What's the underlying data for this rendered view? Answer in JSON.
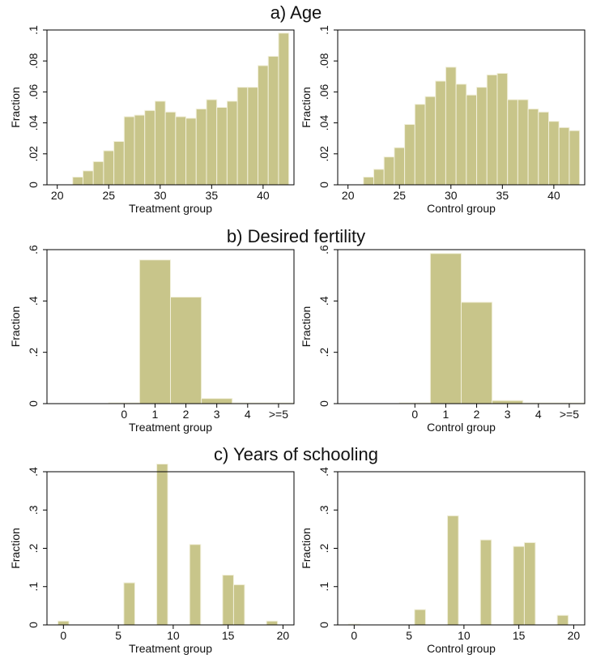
{
  "sections": [
    {
      "title": "a) Age"
    },
    {
      "title": "b) Desired fertility"
    },
    {
      "title": "c) Years of schooling"
    }
  ],
  "colors": {
    "bar_fill": "#c8c58a",
    "bar_stroke": "#f2f0dc",
    "axis": "#000000"
  },
  "chart_data": [
    {
      "type": "bar",
      "panel": "age-treatment",
      "xlabel": "Treatment group",
      "ylabel": "Fraction",
      "xlim": [
        19,
        43
      ],
      "ylim": [
        0,
        0.1
      ],
      "xticks": [
        {
          "v": 20,
          "label": "20"
        },
        {
          "v": 25,
          "label": "25"
        },
        {
          "v": 30,
          "label": "30"
        },
        {
          "v": 35,
          "label": "35"
        },
        {
          "v": 40,
          "label": "40"
        }
      ],
      "yticks": [
        {
          "v": 0,
          "label": "0"
        },
        {
          "v": 0.02,
          "label": ".02"
        },
        {
          "v": 0.04,
          "label": ".04"
        },
        {
          "v": 0.06,
          "label": ".06"
        },
        {
          "v": 0.08,
          "label": ".08"
        },
        {
          "v": 0.1,
          "label": ".1"
        }
      ],
      "bar_width": 1,
      "x": [
        22,
        23,
        24,
        25,
        26,
        27,
        28,
        29,
        30,
        31,
        32,
        33,
        34,
        35,
        36,
        37,
        38,
        39,
        40,
        41,
        42
      ],
      "values": [
        0.005,
        0.009,
        0.015,
        0.022,
        0.028,
        0.044,
        0.045,
        0.048,
        0.054,
        0.047,
        0.044,
        0.043,
        0.049,
        0.055,
        0.05,
        0.054,
        0.063,
        0.063,
        0.077,
        0.083,
        0.098
      ]
    },
    {
      "type": "bar",
      "panel": "age-control",
      "xlabel": "Control group",
      "ylabel": "Fraction",
      "xlim": [
        19,
        43
      ],
      "ylim": [
        0,
        0.1
      ],
      "xticks": [
        {
          "v": 20,
          "label": "20"
        },
        {
          "v": 25,
          "label": "25"
        },
        {
          "v": 30,
          "label": "30"
        },
        {
          "v": 35,
          "label": "35"
        },
        {
          "v": 40,
          "label": "40"
        }
      ],
      "yticks": [
        {
          "v": 0,
          "label": "0"
        },
        {
          "v": 0.02,
          "label": ".02"
        },
        {
          "v": 0.04,
          "label": ".04"
        },
        {
          "v": 0.06,
          "label": ".06"
        },
        {
          "v": 0.08,
          "label": ".08"
        },
        {
          "v": 0.1,
          "label": ".1"
        }
      ],
      "bar_width": 1,
      "x": [
        22,
        23,
        24,
        25,
        26,
        27,
        28,
        29,
        30,
        31,
        32,
        33,
        34,
        35,
        36,
        37,
        38,
        39,
        40,
        41,
        42
      ],
      "values": [
        0.005,
        0.01,
        0.018,
        0.024,
        0.039,
        0.052,
        0.057,
        0.067,
        0.076,
        0.065,
        0.058,
        0.063,
        0.071,
        0.072,
        0.055,
        0.055,
        0.049,
        0.047,
        0.041,
        0.037,
        0.035
      ]
    },
    {
      "type": "bar",
      "panel": "fertility-treatment",
      "xlabel": "Treatment group",
      "ylabel": "Fraction",
      "xlim": [
        -2.5,
        5.5
      ],
      "ylim": [
        0,
        0.6
      ],
      "xticks": [
        {
          "v": 0,
          "label": "0"
        },
        {
          "v": 1,
          "label": "1"
        },
        {
          "v": 2,
          "label": "2"
        },
        {
          "v": 3,
          "label": "3"
        },
        {
          "v": 4,
          "label": "4"
        },
        {
          "v": 5,
          "label": ">=5"
        }
      ],
      "yticks": [
        {
          "v": 0,
          "label": "0"
        },
        {
          "v": 0.2,
          "label": ".2"
        },
        {
          "v": 0.4,
          "label": ".4"
        },
        {
          "v": 0.6,
          "label": ".6"
        }
      ],
      "bar_width": 1,
      "x": [
        0,
        1,
        2,
        3,
        4,
        5
      ],
      "values": [
        0.0,
        0.56,
        0.415,
        0.02,
        0.003,
        0.003
      ]
    },
    {
      "type": "bar",
      "panel": "fertility-control",
      "xlabel": "Control group",
      "ylabel": "Fraction",
      "xlim": [
        -2.5,
        5.5
      ],
      "ylim": [
        0,
        0.6
      ],
      "xticks": [
        {
          "v": 0,
          "label": "0"
        },
        {
          "v": 1,
          "label": "1"
        },
        {
          "v": 2,
          "label": "2"
        },
        {
          "v": 3,
          "label": "3"
        },
        {
          "v": 4,
          "label": "4"
        },
        {
          "v": 5,
          "label": ">=5"
        }
      ],
      "yticks": [
        {
          "v": 0,
          "label": "0"
        },
        {
          "v": 0.2,
          "label": ".2"
        },
        {
          "v": 0.4,
          "label": ".4"
        },
        {
          "v": 0.6,
          "label": ".6"
        }
      ],
      "bar_width": 1,
      "x": [
        0,
        1,
        2,
        3,
        4,
        5
      ],
      "values": [
        0.0,
        0.585,
        0.395,
        0.012,
        0.003,
        0.003
      ]
    },
    {
      "type": "bar",
      "panel": "schooling-treatment",
      "xlabel": "Treatment group",
      "ylabel": "Fraction",
      "xlim": [
        -1.5,
        21
      ],
      "ylim": [
        0,
        0.4
      ],
      "xticks": [
        {
          "v": 0,
          "label": "0"
        },
        {
          "v": 5,
          "label": "5"
        },
        {
          "v": 10,
          "label": "10"
        },
        {
          "v": 15,
          "label": "15"
        },
        {
          "v": 20,
          "label": "20"
        }
      ],
      "yticks": [
        {
          "v": 0,
          "label": "0"
        },
        {
          "v": 0.1,
          "label": ".1"
        },
        {
          "v": 0.2,
          "label": ".2"
        },
        {
          "v": 0.3,
          "label": ".3"
        },
        {
          "v": 0.4,
          "label": ".4"
        }
      ],
      "bar_width": 1,
      "x": [
        0,
        6,
        9,
        12,
        15,
        16,
        19
      ],
      "values": [
        0.01,
        0.11,
        0.42,
        0.21,
        0.13,
        0.105,
        0.01
      ]
    },
    {
      "type": "bar",
      "panel": "schooling-control",
      "xlabel": "Control group",
      "ylabel": "Fraction",
      "xlim": [
        -1.5,
        21
      ],
      "ylim": [
        0,
        0.4
      ],
      "xticks": [
        {
          "v": 0,
          "label": "0"
        },
        {
          "v": 5,
          "label": "5"
        },
        {
          "v": 10,
          "label": "10"
        },
        {
          "v": 15,
          "label": "15"
        },
        {
          "v": 20,
          "label": "20"
        }
      ],
      "yticks": [
        {
          "v": 0,
          "label": "0"
        },
        {
          "v": 0.1,
          "label": ".1"
        },
        {
          "v": 0.2,
          "label": ".2"
        },
        {
          "v": 0.3,
          "label": ".3"
        },
        {
          "v": 0.4,
          "label": ".4"
        }
      ],
      "bar_width": 1,
      "x": [
        0,
        6,
        9,
        12,
        15,
        16,
        19
      ],
      "values": [
        0.002,
        0.04,
        0.285,
        0.222,
        0.205,
        0.215,
        0.025
      ]
    }
  ]
}
